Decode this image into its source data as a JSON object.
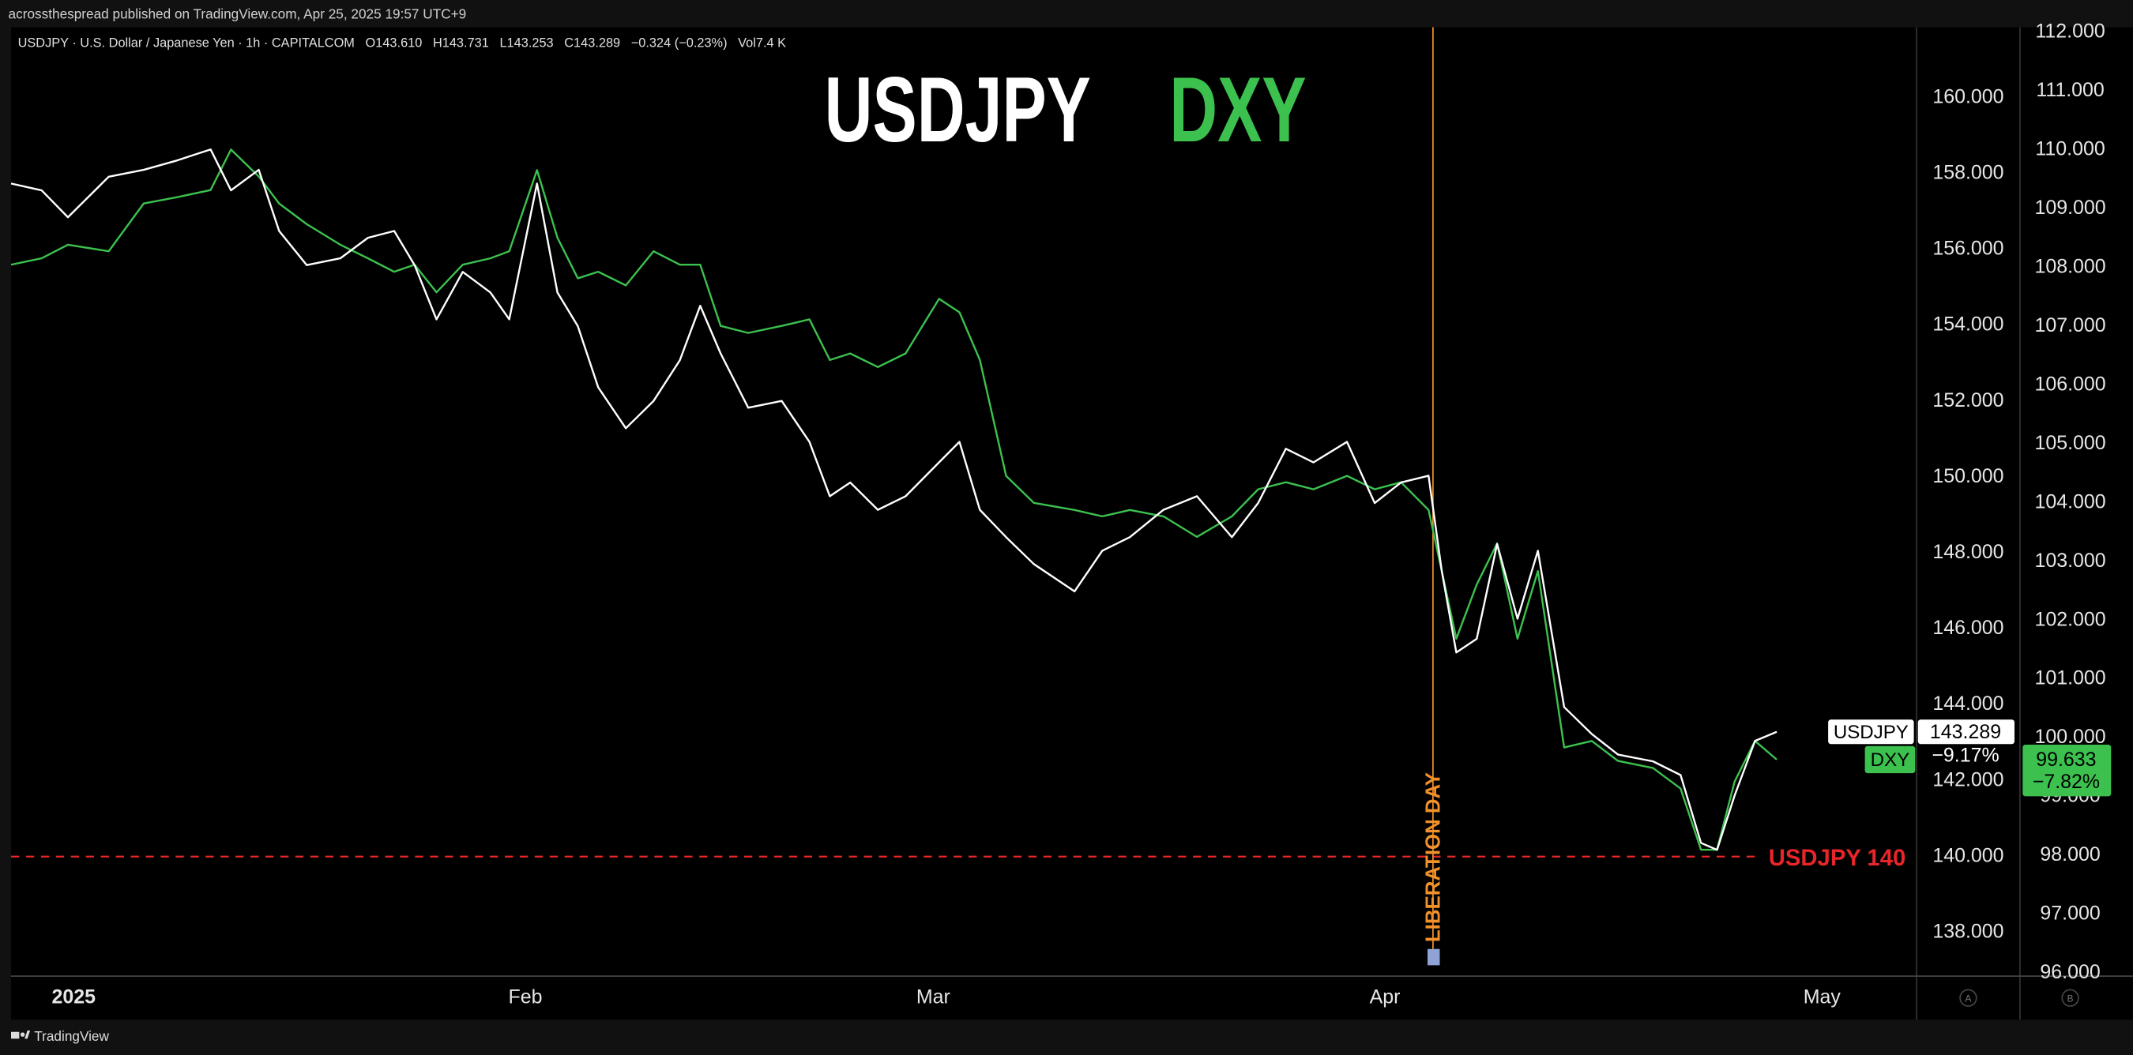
{
  "header": "acrossthespread published on TradingView.com, Apr 25, 2025 19:57 UTC+9",
  "footer": "TradingView",
  "chart_data": {
    "type": "line",
    "info": "USDJPY · U.S. Dollar / Japanese Yen · 1h · CAPITALCOM   O143.610   H143.731   L143.253   C143.289   −0.324 (−0.23%)   Vol7.4 K",
    "titles": [
      {
        "text": "USDJPY",
        "color": "#ffffff"
      },
      {
        "text": "DXY",
        "color": "#3cc14f"
      }
    ],
    "x": [
      -4.3,
      -2.2,
      -0.4,
      2.4,
      4.8,
      7.1,
      9.4,
      10.8,
      12.7,
      14.1,
      16.0,
      18.3,
      20.2,
      22.0,
      23.4,
      24.9,
      26.7,
      28.6,
      29.9,
      31.8,
      33.2,
      34.6,
      36.0,
      37.9,
      39.8,
      41.6,
      43.0,
      44.4,
      46.3,
      48.6,
      50.5,
      51.9,
      53.3,
      55.2,
      57.1,
      59.4,
      60.8,
      62.2,
      64.0,
      65.9,
      68.7,
      70.6,
      72.5,
      74.8,
      77.1,
      79.5,
      81.3,
      83.2,
      85.1,
      87.4,
      89.3,
      91.1,
      93.0,
      93.9,
      94.9,
      96.3,
      97.7,
      99.1,
      100.5,
      102.3,
      104.2,
      106.0,
      108.4,
      110.3,
      111.7,
      112.8,
      114.0,
      115.4,
      116.9
    ],
    "xlim": [
      -4.3,
      126.4
    ],
    "xticks": [
      {
        "value": 0,
        "label": "2025"
      },
      {
        "value": 31,
        "label": "Feb"
      },
      {
        "value": 59,
        "label": "Mar"
      },
      {
        "value": 90,
        "label": "Apr"
      },
      {
        "value": 120,
        "label": "May"
      }
    ],
    "ylim": [
      136.85,
      161.86
    ],
    "yticks": [
      {
        "value": 138,
        "label": "138.000"
      },
      {
        "value": 140,
        "label": "140.000"
      },
      {
        "value": 142,
        "label": "142.000"
      },
      {
        "value": 144,
        "label": "144.000"
      },
      {
        "value": 146,
        "label": "146.000"
      },
      {
        "value": 148,
        "label": "148.000"
      },
      {
        "value": 150,
        "label": "150.000"
      },
      {
        "value": 152,
        "label": "152.000"
      },
      {
        "value": 154,
        "label": "154.000"
      },
      {
        "value": 156,
        "label": "156.000"
      },
      {
        "value": 158,
        "label": "158.000"
      },
      {
        "value": 160,
        "label": "160.000"
      }
    ],
    "y2lim": [
      95.95,
      112.09
    ],
    "y2ticks": [
      {
        "value": 96,
        "label": "96.000"
      },
      {
        "value": 97,
        "label": "97.000"
      },
      {
        "value": 98,
        "label": "98.000"
      },
      {
        "value": 99,
        "label": "99.000"
      },
      {
        "value": 100,
        "label": "100.000"
      },
      {
        "value": 101,
        "label": "101.000"
      },
      {
        "value": 102,
        "label": "102.000"
      },
      {
        "value": 103,
        "label": "103.000"
      },
      {
        "value": 104,
        "label": "104.000"
      },
      {
        "value": 105,
        "label": "105.000"
      },
      {
        "value": 106,
        "label": "106.000"
      },
      {
        "value": 107,
        "label": "107.000"
      },
      {
        "value": 108,
        "label": "108.000"
      },
      {
        "value": 109,
        "label": "109.000"
      },
      {
        "value": 110,
        "label": "110.000"
      },
      {
        "value": 111,
        "label": "111.000"
      },
      {
        "value": 112,
        "label": "112.000"
      }
    ],
    "series": [
      {
        "name": "USDJPY",
        "color": "#ffffff",
        "last_value_label": "143.289",
        "change_label": "−9.17%",
        "values": [
          157.74,
          157.56,
          156.85,
          157.92,
          158.1,
          158.35,
          158.64,
          157.56,
          158.1,
          156.49,
          155.59,
          155.77,
          156.31,
          156.49,
          155.59,
          154.16,
          155.41,
          154.87,
          154.16,
          157.74,
          154.87,
          153.98,
          152.37,
          151.29,
          152.01,
          153.08,
          154.52,
          153.26,
          151.83,
          152.01,
          150.93,
          149.5,
          149.86,
          149.14,
          149.5,
          150.39,
          150.93,
          149.14,
          148.42,
          147.71,
          146.99,
          148.06,
          148.42,
          149.14,
          149.5,
          148.42,
          149.32,
          150.75,
          150.39,
          150.93,
          149.32,
          149.86,
          150.04,
          147.53,
          145.38,
          145.74,
          148.24,
          146.27,
          148.06,
          143.94,
          143.23,
          142.69,
          142.51,
          142.15,
          140.36,
          140.18,
          141.61,
          143.05,
          143.289
        ]
      },
      {
        "name": "DXY",
        "color": "#3cc14f",
        "axis": "y2",
        "last_value_label": "99.633",
        "change_label": "−7.82%",
        "values": [
          108.05,
          108.16,
          108.39,
          108.28,
          109.09,
          109.2,
          109.32,
          110.01,
          109.55,
          109.09,
          108.74,
          108.39,
          108.16,
          107.93,
          108.05,
          107.58,
          108.05,
          108.16,
          108.28,
          109.66,
          108.51,
          107.82,
          107.93,
          107.7,
          108.28,
          108.05,
          108.05,
          107.01,
          106.89,
          107.01,
          107.12,
          106.43,
          106.54,
          106.31,
          106.54,
          107.47,
          107.24,
          106.43,
          104.46,
          104.0,
          103.88,
          103.77,
          103.88,
          103.77,
          103.42,
          103.77,
          104.23,
          104.35,
          104.23,
          104.46,
          104.23,
          104.35,
          103.88,
          102.84,
          101.69,
          102.61,
          103.31,
          101.69,
          102.84,
          99.84,
          99.95,
          99.61,
          99.49,
          99.14,
          98.1,
          98.1,
          99.26,
          99.95,
          99.633
        ]
      }
    ],
    "vline": {
      "x": 93.3,
      "text": "LIBERATION DAY",
      "color": "#f0912a"
    },
    "hline": {
      "y": 140,
      "text": "USDJPY 140",
      "color": "#e8262a"
    },
    "axis_buttons": [
      "A",
      "B"
    ]
  }
}
